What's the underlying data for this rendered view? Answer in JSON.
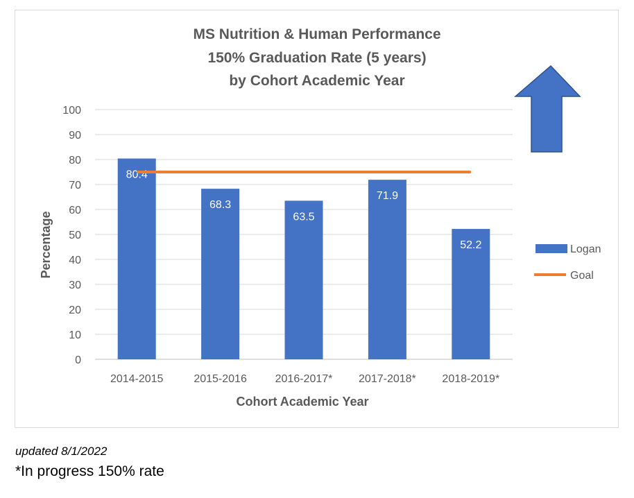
{
  "chart_data": {
    "type": "bar",
    "title_lines": [
      "MS Nutrition & Human Performance",
      "150% Graduation Rate (5 years)",
      "by Cohort Academic Year"
    ],
    "xlabel": "Cohort Academic Year",
    "ylabel": "Percentage",
    "categories": [
      "2014-2015",
      "2015-2016",
      "2016-2017*",
      "2017-2018*",
      "2018-2019*"
    ],
    "series": [
      {
        "name": "Logan",
        "type": "bar",
        "values": [
          80.4,
          68.3,
          63.5,
          71.9,
          52.2
        ],
        "color": "#4472c4",
        "labels": [
          "80.4",
          "68.3",
          "63.5",
          "71.9",
          "52.2"
        ]
      },
      {
        "name": "Goal",
        "type": "line",
        "values": [
          75,
          75,
          75,
          75,
          75
        ],
        "color": "#ed7d31"
      }
    ],
    "ylim": [
      0,
      100
    ],
    "yticks": [
      "0",
      "10",
      "20",
      "30",
      "40",
      "50",
      "60",
      "70",
      "80",
      "90",
      "100"
    ],
    "grid": true,
    "legend": "right",
    "arrow": {
      "direction": "up",
      "color": "#4472c4"
    }
  },
  "footnotes": {
    "updated": "updated 8/1/2022",
    "progress": "*In progress 150% rate"
  }
}
